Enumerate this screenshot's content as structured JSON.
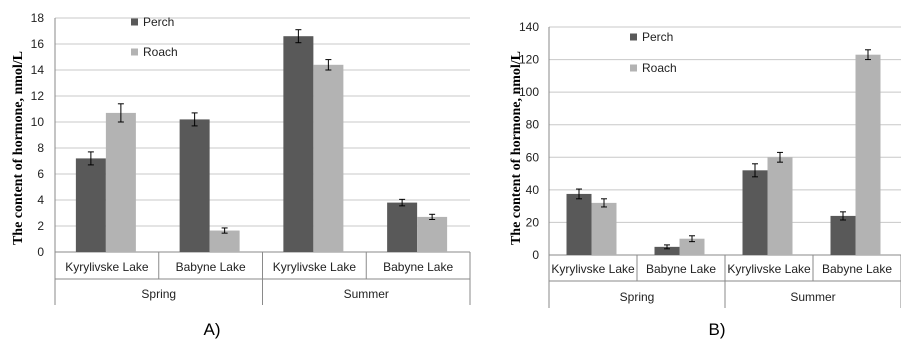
{
  "chart_data": [
    {
      "type": "bar",
      "panel_label": "A)",
      "ylabel": "The content of hormone, nmol/L",
      "ylim": [
        0,
        18
      ],
      "yticks": [
        0,
        2,
        4,
        6,
        8,
        10,
        12,
        14,
        16,
        18
      ],
      "grid": true,
      "legend_position": "top-left",
      "groups": [
        {
          "label": "Spring",
          "categories": [
            "Kyrylivske Lake",
            "Babyne Lake"
          ]
        },
        {
          "label": "Summer",
          "categories": [
            "Kyrylivske Lake",
            "Babyne Lake"
          ]
        }
      ],
      "categories": [
        "Kyrylivske Lake",
        "Babyne Lake",
        "Kyrylivske Lake",
        "Babyne Lake"
      ],
      "series": [
        {
          "name": "Perch",
          "color": "#595959",
          "values": [
            7.2,
            10.2,
            16.6,
            3.8
          ],
          "errors": [
            0.5,
            0.5,
            0.5,
            0.25
          ]
        },
        {
          "name": "Roach",
          "color": "#b3b3b3",
          "values": [
            10.7,
            1.65,
            14.4,
            2.7
          ],
          "errors": [
            0.7,
            0.2,
            0.4,
            0.2
          ]
        }
      ]
    },
    {
      "type": "bar",
      "panel_label": "B)",
      "ylabel": "The content of  hormone, nmol/L",
      "ylim": [
        0,
        140
      ],
      "yticks": [
        0,
        20,
        40,
        60,
        80,
        100,
        120,
        140
      ],
      "grid": true,
      "legend_position": "top-left",
      "groups": [
        {
          "label": "Spring",
          "categories": [
            "Kyrylivske Lake",
            "Babyne Lake"
          ]
        },
        {
          "label": "Summer",
          "categories": [
            "Kyrylivske Lake",
            "Babyne Lake"
          ]
        }
      ],
      "categories": [
        "Kyrylivske Lake",
        "Babyne Lake",
        "Kyrylivske Lake",
        "Babyne Lake"
      ],
      "series": [
        {
          "name": "Perch",
          "color": "#595959",
          "values": [
            37.5,
            5,
            52,
            24
          ],
          "errors": [
            3,
            1.2,
            4,
            2.5
          ]
        },
        {
          "name": "Roach",
          "color": "#b3b3b3",
          "values": [
            32,
            10,
            60,
            123
          ],
          "errors": [
            2.5,
            1.8,
            3,
            3
          ]
        }
      ]
    }
  ]
}
